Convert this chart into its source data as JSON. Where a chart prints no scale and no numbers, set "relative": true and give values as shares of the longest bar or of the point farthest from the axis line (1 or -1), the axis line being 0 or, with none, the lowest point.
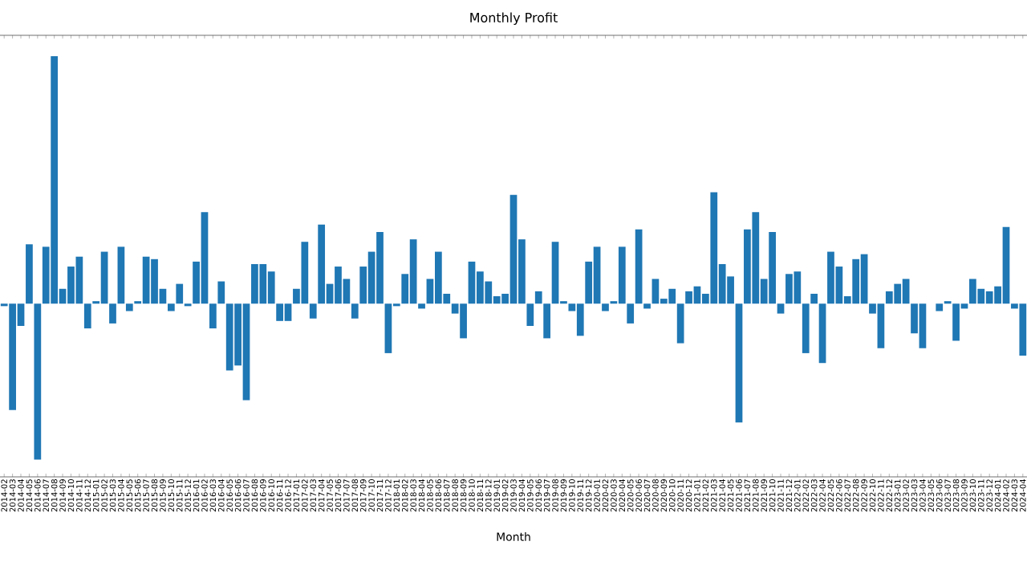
{
  "chart_data": {
    "type": "bar",
    "title": "Monthly Profit",
    "xlabel": "Month",
    "relative": true,
    "color": "#1f77b4",
    "categories": [
      "2014-02",
      "2014-03",
      "2014-04",
      "2014-05",
      "2014-06",
      "2014-07",
      "2014-08",
      "2014-09",
      "2014-10",
      "2014-11",
      "2014-12",
      "2015-01",
      "2015-02",
      "2015-03",
      "2015-04",
      "2015-05",
      "2015-06",
      "2015-07",
      "2015-08",
      "2015-09",
      "2015-10",
      "2015-11",
      "2015-12",
      "2016-01",
      "2016-02",
      "2016-03",
      "2016-04",
      "2016-05",
      "2016-06",
      "2016-07",
      "2016-08",
      "2016-09",
      "2016-10",
      "2016-11",
      "2016-12",
      "2017-01",
      "2017-02",
      "2017-03",
      "2017-04",
      "2017-05",
      "2017-06",
      "2017-07",
      "2017-08",
      "2017-09",
      "2017-10",
      "2017-11",
      "2017-12",
      "2018-01",
      "2018-02",
      "2018-03",
      "2018-04",
      "2018-05",
      "2018-06",
      "2018-07",
      "2018-08",
      "2018-09",
      "2018-10",
      "2018-11",
      "2018-12",
      "2019-01",
      "2019-02",
      "2019-03",
      "2019-04",
      "2019-05",
      "2019-06",
      "2019-07",
      "2019-08",
      "2019-09",
      "2019-10",
      "2019-11",
      "2019-12",
      "2020-01",
      "2020-02",
      "2020-03",
      "2020-04",
      "2020-05",
      "2020-06",
      "2020-07",
      "2020-08",
      "2020-09",
      "2020-10",
      "2020-11",
      "2020-12",
      "2021-01",
      "2021-02",
      "2021-03",
      "2021-04",
      "2021-05",
      "2021-06",
      "2021-07",
      "2021-08",
      "2021-09",
      "2021-10",
      "2021-11",
      "2021-12",
      "2022-01",
      "2022-02",
      "2022-03",
      "2022-04",
      "2022-05",
      "2022-06",
      "2022-07",
      "2022-08",
      "2022-09",
      "2022-10",
      "2022-11",
      "2022-12",
      "2023-01",
      "2023-02",
      "2023-03",
      "2023-04",
      "2023-05",
      "2023-06",
      "2023-07",
      "2023-08",
      "2023-09",
      "2023-10",
      "2023-11",
      "2023-12",
      "2024-01",
      "2024-02",
      "2024-03",
      "2024-04"
    ],
    "values": [
      -0.01,
      -0.43,
      -0.09,
      0.24,
      -0.63,
      0.23,
      1.0,
      0.06,
      0.15,
      0.19,
      -0.1,
      0.01,
      0.21,
      -0.08,
      0.23,
      -0.03,
      0.01,
      0.19,
      0.18,
      0.06,
      -0.03,
      0.08,
      -0.01,
      0.17,
      0.37,
      -0.1,
      0.09,
      -0.27,
      -0.25,
      -0.39,
      0.16,
      0.16,
      0.13,
      -0.07,
      -0.07,
      0.06,
      0.25,
      -0.06,
      0.32,
      0.08,
      0.15,
      0.1,
      -0.06,
      0.15,
      0.21,
      0.29,
      -0.2,
      -0.01,
      0.12,
      0.26,
      -0.02,
      0.1,
      0.21,
      0.04,
      -0.04,
      -0.14,
      0.17,
      0.13,
      0.09,
      0.03,
      0.04,
      0.44,
      0.26,
      -0.09,
      0.05,
      -0.14,
      0.25,
      0.01,
      -0.03,
      -0.13,
      0.17,
      0.23,
      -0.03,
      0.01,
      0.23,
      -0.08,
      0.3,
      -0.02,
      0.1,
      0.02,
      0.06,
      -0.16,
      0.05,
      0.07,
      0.04,
      0.45,
      0.16,
      0.11,
      -0.48,
      0.3,
      0.37,
      0.1,
      0.29,
      -0.04,
      0.12,
      0.13,
      -0.2,
      0.04,
      -0.24,
      0.21,
      0.15,
      0.03,
      0.18,
      0.2,
      -0.04,
      -0.18,
      0.05,
      0.08,
      0.1,
      -0.12,
      -0.18,
      0,
      -0.03,
      0.01,
      -0.15,
      -0.02,
      0.1,
      0.06,
      0.05,
      0.07,
      0.31,
      -0.02,
      -0.21
    ]
  }
}
